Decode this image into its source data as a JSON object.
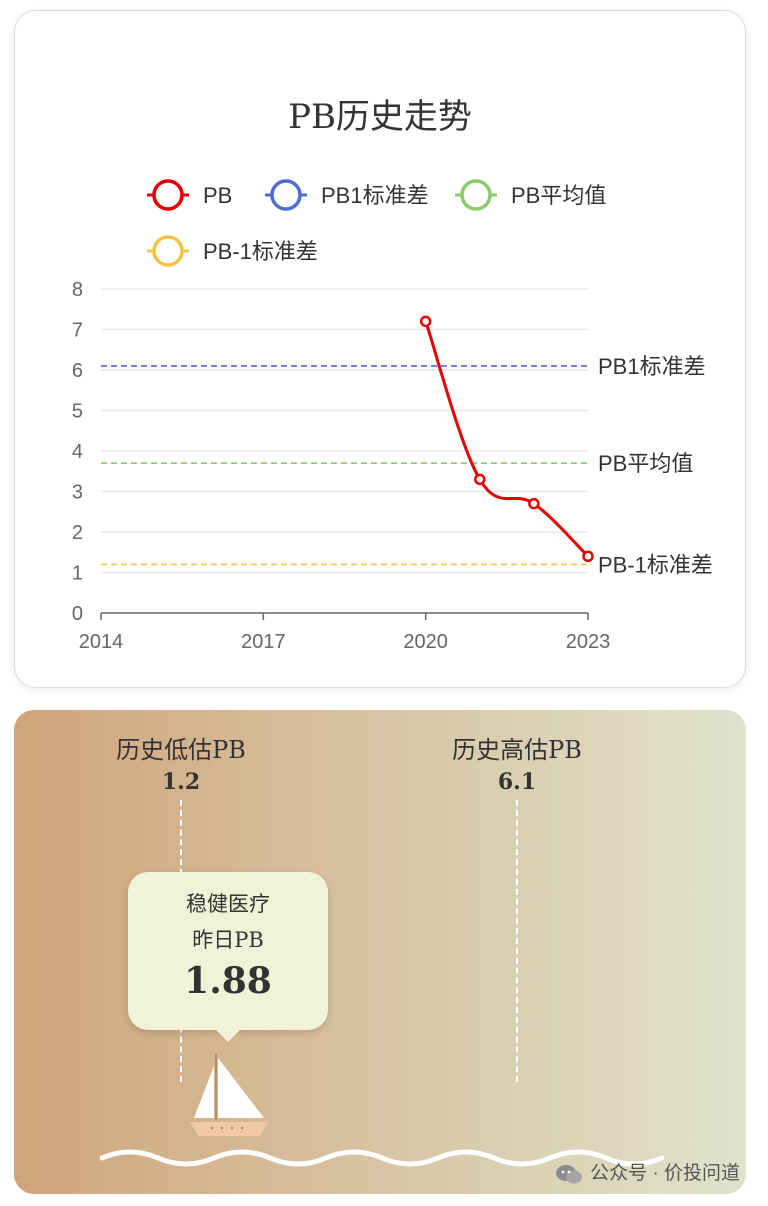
{
  "chart_data": {
    "type": "line",
    "title": "PB历史走势",
    "legend": [
      "PB",
      "PB1标准差",
      "PB平均值",
      "PB-1标准差"
    ],
    "legend_placement": "top",
    "x_ticks": [
      "2014",
      "2017",
      "2020",
      "2023"
    ],
    "xlim": [
      2014,
      2023
    ],
    "ylim": [
      0,
      8
    ],
    "y_ticks": [
      0,
      1,
      2,
      3,
      4,
      5,
      6,
      7,
      8
    ],
    "grid": true,
    "series": [
      {
        "name": "PB",
        "color": "#e60000",
        "x": [
          2020,
          2021,
          2022,
          2023
        ],
        "y": [
          7.2,
          3.3,
          2.7,
          1.4
        ]
      }
    ],
    "reference_lines": [
      {
        "name": "PB1标准差",
        "label": "PB1标准差",
        "value": 6.1,
        "color": "#4f6bd4"
      },
      {
        "name": "PB平均值",
        "label": "PB平均值",
        "value": 3.7,
        "color": "#8ccb6a"
      },
      {
        "name": "PB-1标准差",
        "label": "PB-1标准差",
        "value": 1.2,
        "color": "#f7c244"
      }
    ]
  },
  "valuation": {
    "low_title": "历史低估PB",
    "low_value": "1.2",
    "high_title": "历史高估PB",
    "high_value": "6.1",
    "company": "稳健医疗",
    "current_label": "昨日PB",
    "current_value": "1.88"
  },
  "watermark": "公众号 · 价投问道"
}
